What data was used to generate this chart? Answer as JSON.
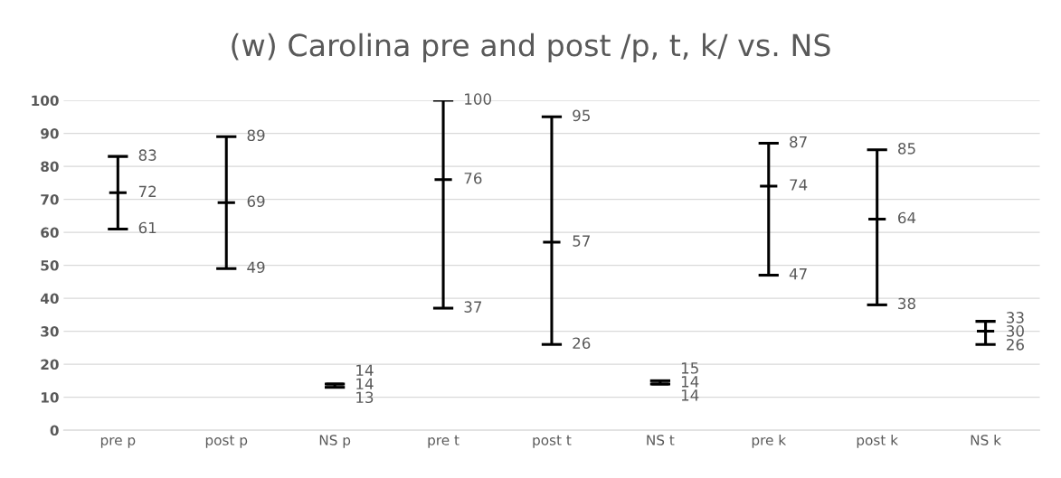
{
  "chart_data": {
    "type": "candlestick",
    "title": "(w) Carolina pre and post /p, t, k/ vs. NS",
    "categories": [
      "pre p",
      "post p",
      "NS p",
      "pre t",
      "post t",
      "NS t",
      "pre k",
      "post k",
      "NS k"
    ],
    "ohlc": [
      [
        72,
        83,
        61,
        72
      ],
      [
        69,
        89,
        49,
        69
      ],
      [
        14,
        14,
        13,
        14
      ],
      [
        76,
        100,
        37,
        76
      ],
      [
        57,
        95,
        26,
        57
      ],
      [
        14,
        15,
        14,
        14
      ],
      [
        74,
        87,
        47,
        74
      ],
      [
        64,
        85,
        38,
        64
      ],
      [
        30,
        33,
        26,
        30
      ]
    ],
    "color": "#000000",
    "ylim": [
      0,
      100
    ],
    "yticks": [
      0,
      10,
      20,
      30,
      40,
      50,
      60,
      70,
      80,
      90,
      100
    ],
    "grid": "y",
    "annotations": [
      {
        "text": "83",
        "x": "pre p",
        "y": 83
      },
      {
        "text": "72",
        "x": "pre p",
        "y": 72
      },
      {
        "text": "61",
        "x": "pre p",
        "y": 61
      },
      {
        "text": "89",
        "x": "post p",
        "y": 89
      },
      {
        "text": "69",
        "x": "post p",
        "y": 69
      },
      {
        "text": "49",
        "x": "post p",
        "y": 49
      },
      {
        "text": "14",
        "x": "NS p",
        "y": 14
      },
      {
        "text": "14",
        "x": "NS p",
        "y": 14
      },
      {
        "text": "13",
        "x": "NS p",
        "y": 13
      },
      {
        "text": "100",
        "x": "pre t",
        "y": 100
      },
      {
        "text": "76",
        "x": "pre t",
        "y": 76
      },
      {
        "text": "37",
        "x": "pre t",
        "y": 37
      },
      {
        "text": "95",
        "x": "post t",
        "y": 95
      },
      {
        "text": "57",
        "x": "post t",
        "y": 57
      },
      {
        "text": "26",
        "x": "post t",
        "y": 26
      },
      {
        "text": "15",
        "x": "NS t",
        "y": 15
      },
      {
        "text": "14",
        "x": "NS t",
        "y": 14
      },
      {
        "text": "14",
        "x": "NS t",
        "y": 14
      },
      {
        "text": "87",
        "x": "pre k",
        "y": 87
      },
      {
        "text": "74",
        "x": "pre k",
        "y": 74
      },
      {
        "text": "47",
        "x": "pre k",
        "y": 47
      },
      {
        "text": "85",
        "x": "post k",
        "y": 85
      },
      {
        "text": "64",
        "x": "post k",
        "y": 64
      },
      {
        "text": "38",
        "x": "post k",
        "y": 38
      },
      {
        "text": "33",
        "x": "NS k",
        "y": 33
      },
      {
        "text": "30",
        "x": "NS k",
        "y": 30
      },
      {
        "text": "26",
        "x": "NS k",
        "y": 26
      }
    ]
  }
}
